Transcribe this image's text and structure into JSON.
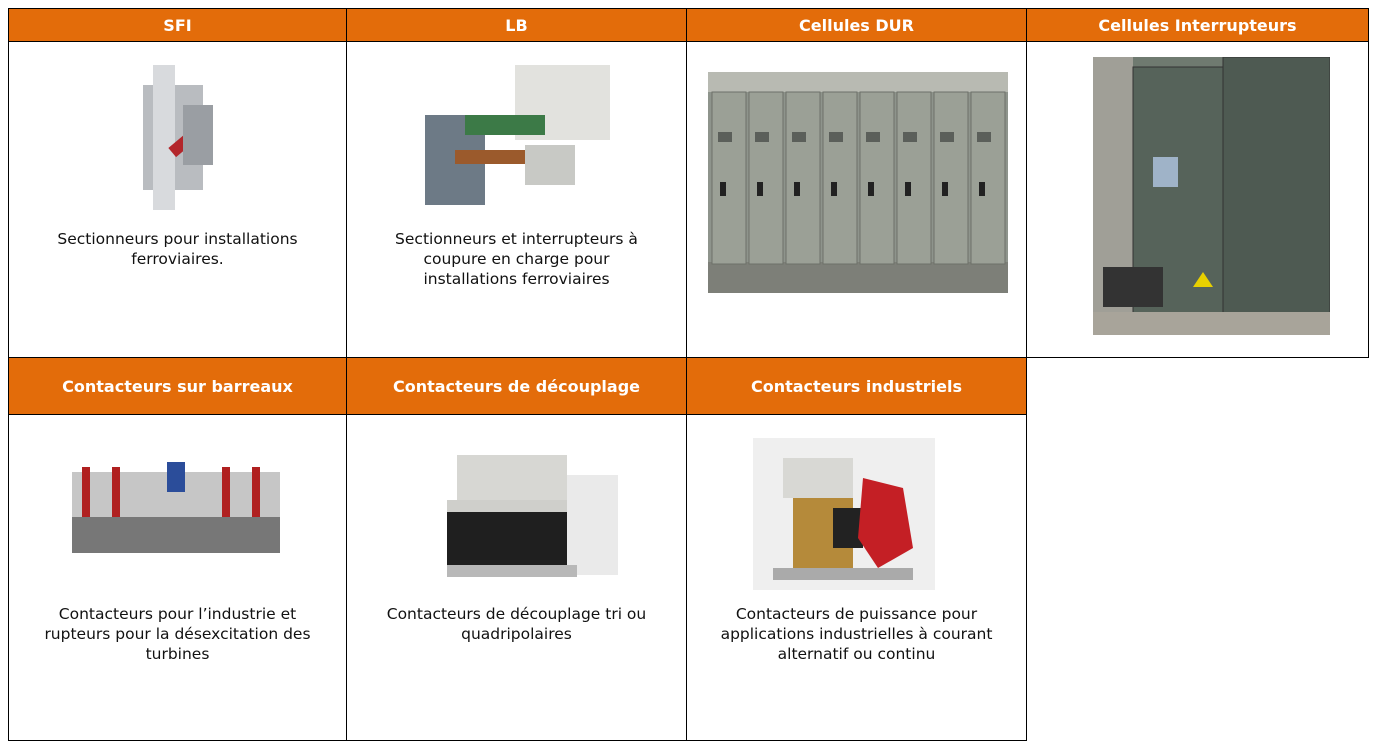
{
  "cells": [
    {
      "title": "SFI",
      "description": "Sectionneurs pour installations ferroviaires."
    },
    {
      "title": "LB",
      "description": "Sectionneurs et interrupteurs à coupure en charge pour installations ferroviaires"
    },
    {
      "title": "Cellules DUR"
    },
    {
      "title": "Cellules Interrupteurs"
    },
    {
      "title": "Contacteurs sur barreaux",
      "description": "Contacteurs pour l’industrie et rupteurs pour la désexcitation des turbines"
    },
    {
      "title": "Contacteurs de découplage",
      "description": "Contacteurs de découplage tri ou quadripolaires"
    },
    {
      "title": "Contacteurs industriels",
      "description": "Contacteurs de puissance pour applications industrielles à courant alternatif ou continu"
    }
  ]
}
